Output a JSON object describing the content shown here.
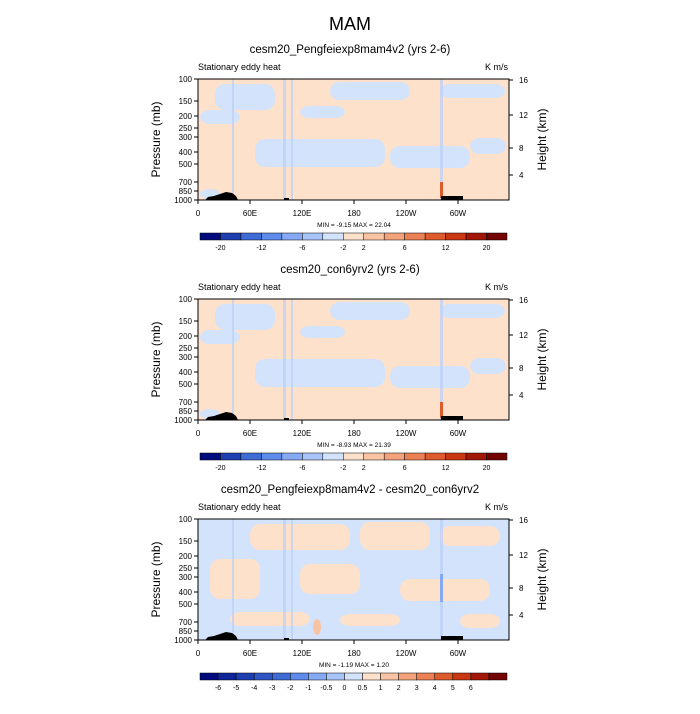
{
  "figure": {
    "title": "MAM"
  },
  "chart_data": [
    {
      "type": "heatmap",
      "title": "cesm20_Pengfeiexp8mam4v2 (yrs 2-6)",
      "left_string": "Stationary eddy heat",
      "right_string": "K m/s",
      "ylabel": "Pressure (mb)",
      "ylabel_right": "Height (km)",
      "y_ticks": [
        "100",
        "150",
        "200",
        "250",
        "300",
        "400",
        "500",
        "700",
        "850",
        "1000"
      ],
      "y_right_ticks": [
        "16",
        "12",
        "8",
        "4"
      ],
      "x_ticks": [
        "0",
        "60E",
        "120E",
        "180",
        "120W",
        "60W"
      ],
      "stats": "MIN = -9.15  MAX = 22.04",
      "colorbar_labels": [
        "-20",
        "-12",
        "-6",
        "-2",
        "2",
        "6",
        "12",
        "20"
      ],
      "colorbar_colors": [
        "#000c7d",
        "#1d3fb0",
        "#3f6bd5",
        "#5e8bec",
        "#86a9f4",
        "#a9c4f8",
        "#d3e3fb",
        "#fde1cb",
        "#f9c4a4",
        "#f2a37c",
        "#ea8054",
        "#dd5b2c",
        "#c93713",
        "#a31709",
        "#730303"
      ],
      "x_range": [
        0,
        360
      ],
      "y_range_mb": [
        100,
        1000
      ]
    },
    {
      "type": "heatmap",
      "title": "cesm20_con6yrv2 (yrs 2-6)",
      "left_string": "Stationary eddy heat",
      "right_string": "K m/s",
      "ylabel": "Pressure (mb)",
      "ylabel_right": "Height (km)",
      "y_ticks": [
        "100",
        "150",
        "200",
        "250",
        "300",
        "400",
        "500",
        "700",
        "850",
        "1000"
      ],
      "y_right_ticks": [
        "16",
        "12",
        "8",
        "4"
      ],
      "x_ticks": [
        "0",
        "60E",
        "120E",
        "180",
        "120W",
        "60W"
      ],
      "stats": "MIN = -8.93  MAX = 21.39",
      "colorbar_labels": [
        "-20",
        "-12",
        "-6",
        "-2",
        "2",
        "6",
        "12",
        "20"
      ],
      "colorbar_colors": [
        "#000c7d",
        "#1d3fb0",
        "#3f6bd5",
        "#5e8bec",
        "#86a9f4",
        "#a9c4f8",
        "#d3e3fb",
        "#fde1cb",
        "#f9c4a4",
        "#f2a37c",
        "#ea8054",
        "#dd5b2c",
        "#c93713",
        "#a31709",
        "#730303"
      ],
      "x_range": [
        0,
        360
      ],
      "y_range_mb": [
        100,
        1000
      ]
    },
    {
      "type": "heatmap",
      "title": "cesm20_Pengfeiexp8mam4v2 - cesm20_con6yrv2",
      "left_string": "Stationary eddy heat",
      "right_string": "K m/s",
      "ylabel": "Pressure (mb)",
      "ylabel_right": "Height (km)",
      "y_ticks": [
        "100",
        "150",
        "200",
        "250",
        "300",
        "400",
        "500",
        "700",
        "850",
        "1000"
      ],
      "y_right_ticks": [
        "16",
        "12",
        "8",
        "4"
      ],
      "x_ticks": [
        "0",
        "60E",
        "120E",
        "180",
        "120W",
        "60W"
      ],
      "stats": "MIN = -1.19  MAX =  1.20",
      "colorbar_labels": [
        "-6",
        "-5",
        "-4",
        "-3",
        "-2",
        "-1",
        "-0.5",
        "0",
        "0.5",
        "1",
        "2",
        "3",
        "4",
        "5",
        "6"
      ],
      "colorbar_colors": [
        "#000c7d",
        "#10259a",
        "#1d3fb0",
        "#2f56c4",
        "#3f6bd5",
        "#5e8bec",
        "#86a9f4",
        "#a9c4f8",
        "#d3e3fb",
        "#fde1cb",
        "#f9c4a4",
        "#f2a37c",
        "#ea8054",
        "#dd5b2c",
        "#c93713",
        "#a31709",
        "#730303"
      ],
      "x_range": [
        0,
        360
      ],
      "y_range_mb": [
        100,
        1000
      ]
    }
  ]
}
